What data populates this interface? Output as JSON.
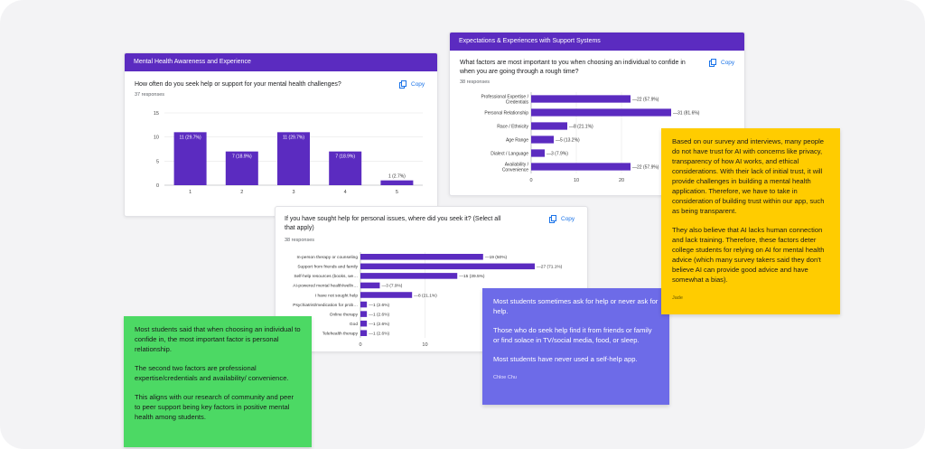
{
  "copy_label": "Copy",
  "chart_data": [
    {
      "type": "bar",
      "section": "Mental Health Awareness and Experience",
      "title": "How often do you seek help or support for your mental health challenges?",
      "responses": "37 responses",
      "categories": [
        "1",
        "2",
        "3",
        "4",
        "5"
      ],
      "values": [
        11,
        7,
        11,
        7,
        1
      ],
      "labels": [
        "11 (29.7%)",
        "7 (18.9%)",
        "11 (29.7%)",
        "7 (18.9%)",
        "1 (2.7%)"
      ],
      "yticks": [
        0,
        5,
        10,
        15
      ],
      "ylim": [
        0,
        15
      ]
    },
    {
      "type": "bar",
      "orientation": "horizontal",
      "section": "Expectations & Experiences with Support Systems",
      "title": "What factors are most important to you when choosing an individual to confide in when you are going through a rough time?",
      "responses": "38 responses",
      "categories": [
        "Professional Expertise / Credentials",
        "Personal Relationship",
        "Race / Ethnicity",
        "Age Range",
        "Dialect / Language",
        "Availability / Convenience"
      ],
      "values": [
        22,
        31,
        8,
        5,
        3,
        22
      ],
      "labels": [
        "22 (57.9%)",
        "31 (81.6%)",
        "8 (21.1%)",
        "5 (13.2%)",
        "3 (7.9%)",
        "22 (57.9%)"
      ],
      "xticks": [
        0,
        10,
        20
      ],
      "xlim": [
        0,
        31
      ]
    },
    {
      "type": "bar",
      "orientation": "horizontal",
      "title": "If you have sought help for personal issues, where did you seek it? (Select all that apply)",
      "responses": "38 responses",
      "categories": [
        "In-person therapy or counseling",
        "Support from friends and family",
        "Self-help resources (books, we…",
        "AI-powered mental health/welln…",
        "I have not sought help",
        "Psychiatrist/medication for prob…",
        "Online therapy",
        "God",
        "Telehealth therapy"
      ],
      "values": [
        19,
        27,
        15,
        3,
        8,
        1,
        1,
        1,
        1
      ],
      "labels": [
        "19 (50%)",
        "27 (71.1%)",
        "15 (39.5%)",
        "3 (7.9%)",
        "8 (21.1%)",
        "1 (2.6%)",
        "1 (2.6%)",
        "1 (2.6%)",
        "1 (2.6%)"
      ],
      "xticks": [
        0,
        10
      ],
      "xlim": [
        0,
        27
      ]
    }
  ],
  "notes": {
    "green": {
      "p1": "Most students said that when choosing an individual to confide in, the most important factor is personal relationship.",
      "p2": "The second two factors are professional expertise/credentials and availability/ convenience.",
      "p3": "This aligns with our research of community and peer to peer support being key factors in positive mental health among students."
    },
    "blue": {
      "p1": "Most students sometimes ask for help or never ask for help.",
      "p2": "Those who do seek help find it from friends or family or find solace in TV/social media, food, or sleep.",
      "p3": "Most students have never used a self-help app.",
      "author": "Chloe Chu"
    },
    "yellow": {
      "p1": "Based on our survey and interviews, many people do not have trust for AI with concerns like privacy, transparency of how AI works, and ethical considerations. With their lack of initial trust, it will provide challenges in building a mental health application. Therefore, we have to take in consideration of building trust within our app, such as being transparent.",
      "p2": "They also believe that AI lacks human connection and lack training. Therefore, these factors deter college students for relying on AI for mental health advice (which many survey takers said they don't believe AI can provide good advice and have somewhat a bias).",
      "author": "Jade"
    }
  },
  "colors": {
    "bar": "#5b2bc0",
    "header": "#5b2bc0",
    "copy": "#1a73e8"
  }
}
